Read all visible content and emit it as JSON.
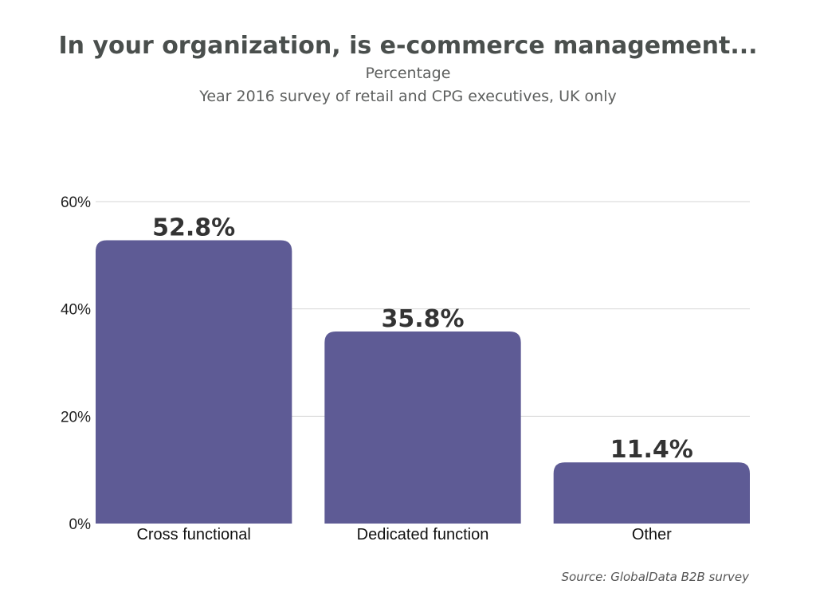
{
  "header": {
    "title": "In your organization, is e-commerce management...",
    "subtitle_line1": "Percentage",
    "subtitle_line2": "Year 2016 survey of retail and CPG executives, UK only"
  },
  "source": "Source: GlobalData B2B survey",
  "colors": {
    "bar": "#5e5b95",
    "grid": "#d6d6d6",
    "axis_text": "#222222",
    "label_text": "#333333",
    "title_text": "#4a4f4d"
  },
  "chart_data": {
    "type": "bar",
    "title": "In your organization, is e-commerce management...",
    "subtitle": "Percentage",
    "categories": [
      "Cross functional",
      "Dedicated function",
      "Other"
    ],
    "values": [
      52.8,
      35.8,
      11.4
    ],
    "data_labels": [
      "52.8%",
      "35.8%",
      "11.4%"
    ],
    "ylim": [
      0,
      60
    ],
    "yticks": [
      0,
      20,
      40,
      60
    ],
    "ytick_labels": [
      "0%",
      "20%",
      "40%",
      "60%"
    ],
    "xlabel": "",
    "ylabel": "",
    "grid": true,
    "legend": "none"
  }
}
